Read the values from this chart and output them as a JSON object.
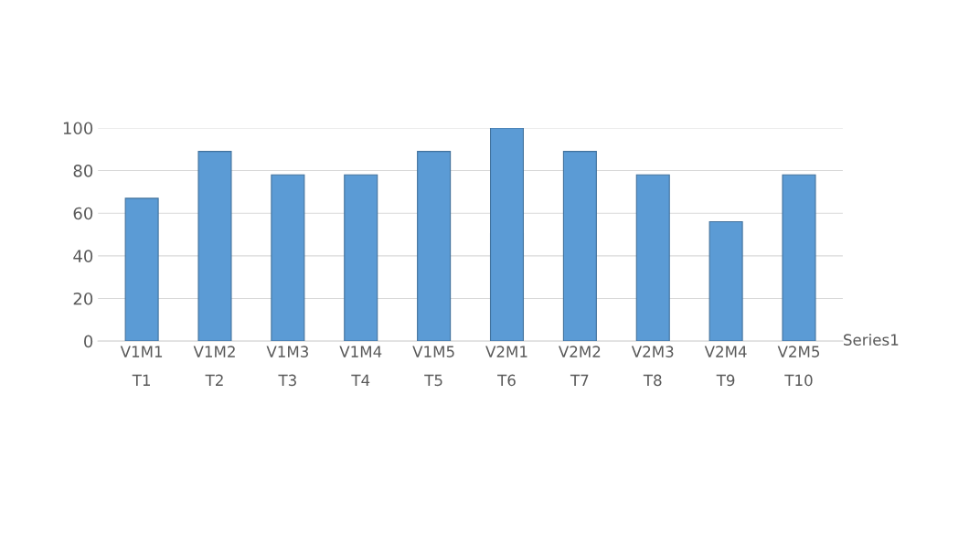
{
  "chart_data": {
    "type": "bar",
    "categories": [
      "V1M1\nT1",
      "V1M2\nT2",
      "V1M3\nT3",
      "V1M4\nT4",
      "V1M5\nT5",
      "V2M1\nT6",
      "V2M2\nT7",
      "V2M3\nT8",
      "V2M4\nT9",
      "V2M5\nT10"
    ],
    "series": [
      {
        "name": "Series1",
        "color": "#5b9bd5",
        "values": [
          67,
          89,
          78,
          78,
          89,
          100,
          89,
          78,
          56,
          78
        ]
      }
    ],
    "ylim": [
      0,
      100
    ],
    "yticks": [
      0,
      20,
      40,
      60,
      80,
      100
    ],
    "grid": "y",
    "legend": false
  }
}
